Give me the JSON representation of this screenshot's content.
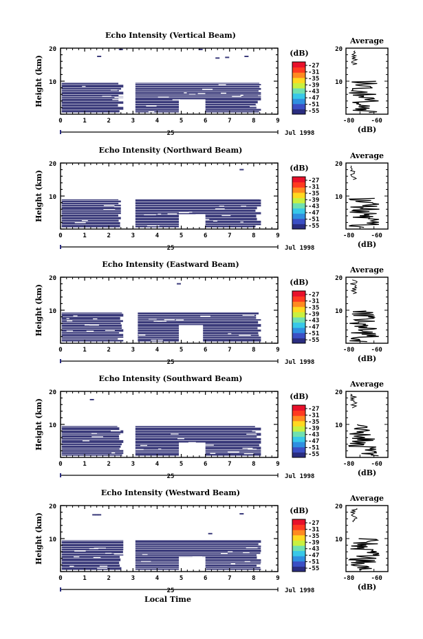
{
  "figure": {
    "time_axis_label": "Local Time",
    "date_label": "Jul 1998",
    "day_label": "25",
    "height_label": "Height (km)",
    "average_title": "Average",
    "average_xlabel": "(dB)",
    "colorbar_unit": "(dB)",
    "colorbar_ticks": [
      "-27",
      "-31",
      "-35",
      "-39",
      "-43",
      "-47",
      "-51",
      "-55"
    ],
    "colormap": [
      "#2a2d80",
      "#3b4fc4",
      "#2f8fe0",
      "#38c8e8",
      "#6fe0b0",
      "#c8f040",
      "#ffd820",
      "#ff8a20",
      "#ff3a20",
      "#e8102a"
    ],
    "echo_color": "#3a3a7a"
  },
  "chart_data": [
    {
      "type": "heatmap",
      "title": "Echo Intensity (Vertical Beam)",
      "xlabel": "Local Time",
      "ylabel": "Height (km)",
      "xlim": [
        0,
        9
      ],
      "ylim": [
        0,
        20
      ],
      "xticks": [
        "0",
        "1",
        "2",
        "3",
        "4",
        "5",
        "6",
        "7",
        "8",
        "9"
      ],
      "yticks": [
        "20",
        "10"
      ],
      "echo_top_km": 9.5,
      "gaps_local_time": [
        [
          2.6,
          3.1
        ]
      ],
      "mostly_uniform_value_dB": -55,
      "notch": {
        "t": [
          4.9,
          6.0
        ],
        "top_km": 4.5
      },
      "sparse_echoes": [
        [
          1.6,
          17.5
        ],
        [
          2.5,
          19.6
        ],
        [
          5.8,
          19.6
        ],
        [
          6.5,
          17.0
        ],
        [
          6.9,
          17.2
        ],
        [
          7.7,
          17.5
        ]
      ],
      "average": {
        "xlabel": "(dB)",
        "xlim": [
          -80,
          -50
        ],
        "xticks": [
          "-80",
          "-60"
        ],
        "yticks": [
          "20",
          "10"
        ]
      }
    },
    {
      "type": "heatmap",
      "title": "Echo Intensity (Northward Beam)",
      "xlabel": "Local Time",
      "ylabel": "Height (km)",
      "xlim": [
        0,
        9
      ],
      "ylim": [
        0,
        20
      ],
      "xticks": [
        "0",
        "1",
        "2",
        "3",
        "4",
        "5",
        "6",
        "7",
        "8",
        "9"
      ],
      "yticks": [
        "20",
        "10"
      ],
      "echo_top_km": 9.0,
      "gaps_local_time": [
        [
          2.5,
          3.1
        ]
      ],
      "mostly_uniform_value_dB": -55,
      "notch": {
        "t": [
          4.9,
          6.0
        ],
        "top_km": 4.5
      },
      "sparse_echoes": [
        [
          7.5,
          18.0
        ]
      ],
      "average": {
        "xlabel": "(dB)",
        "xlim": [
          -80,
          -50
        ],
        "xticks": [
          "-80",
          "-60"
        ],
        "yticks": [
          "20",
          "10"
        ]
      }
    },
    {
      "type": "heatmap",
      "title": "Echo Intensity (Eastward Beam)",
      "xlabel": "Local Time",
      "ylabel": "Height (km)",
      "xlim": [
        0,
        9
      ],
      "ylim": [
        0,
        20
      ],
      "xticks": [
        "0",
        "1",
        "2",
        "3",
        "4",
        "5",
        "6",
        "7",
        "8",
        "9"
      ],
      "yticks": [
        "20",
        "10"
      ],
      "echo_top_km": 9.3,
      "gaps_local_time": [
        [
          2.6,
          3.2
        ]
      ],
      "mostly_uniform_value_dB": -55,
      "notch": {
        "t": [
          4.9,
          5.9
        ],
        "top_km": 5.5
      },
      "sparse_echoes": [
        [
          4.9,
          18.0
        ]
      ],
      "average": {
        "xlabel": "(dB)",
        "xlim": [
          -80,
          -50
        ],
        "xticks": [
          "-80",
          "-60"
        ],
        "yticks": [
          "20",
          "10"
        ]
      }
    },
    {
      "type": "heatmap",
      "title": "Echo Intensity (Southward Beam)",
      "xlabel": "Local Time",
      "ylabel": "Height (km)",
      "xlim": [
        0,
        9
      ],
      "ylim": [
        0,
        20
      ],
      "xticks": [
        "0",
        "1",
        "2",
        "3",
        "4",
        "5",
        "6",
        "7",
        "8",
        "9"
      ],
      "yticks": [
        "20",
        "10"
      ],
      "echo_top_km": 9.5,
      "gaps_local_time": [
        [
          2.6,
          3.1
        ]
      ],
      "mostly_uniform_value_dB": -55,
      "notch": {
        "t": [
          4.9,
          6.0
        ],
        "top_km": 4.5
      },
      "sparse_echoes": [
        [
          1.3,
          17.5
        ]
      ],
      "average": {
        "xlabel": "(dB)",
        "xlim": [
          -80,
          -50
        ],
        "xticks": [
          "-80",
          "-60"
        ],
        "yticks": [
          "20",
          "10"
        ]
      }
    },
    {
      "type": "heatmap",
      "title": "Echo Intensity (Westward Beam)",
      "xlabel": "Local Time",
      "ylabel": "Height (km)",
      "xlim": [
        0,
        9
      ],
      "ylim": [
        0,
        20
      ],
      "xticks": [
        "0",
        "1",
        "2",
        "3",
        "4",
        "5",
        "6",
        "7",
        "8",
        "9"
      ],
      "yticks": [
        "20",
        "10"
      ],
      "echo_top_km": 9.5,
      "gaps_local_time": [
        [
          2.6,
          3.1
        ]
      ],
      "mostly_uniform_value_dB": -55,
      "notch": {
        "t": [
          4.9,
          6.0
        ],
        "top_km": 4.5
      },
      "sparse_echoes": [
        [
          1.4,
          17.2
        ],
        [
          1.5,
          17.2
        ],
        [
          1.6,
          17.2
        ],
        [
          7.5,
          17.5
        ],
        [
          6.2,
          11.5
        ]
      ],
      "average": {
        "xlabel": "(dB)",
        "xlim": [
          -80,
          -50
        ],
        "xticks": [
          "-80",
          "-60"
        ],
        "yticks": [
          "20",
          "10"
        ]
      }
    }
  ]
}
